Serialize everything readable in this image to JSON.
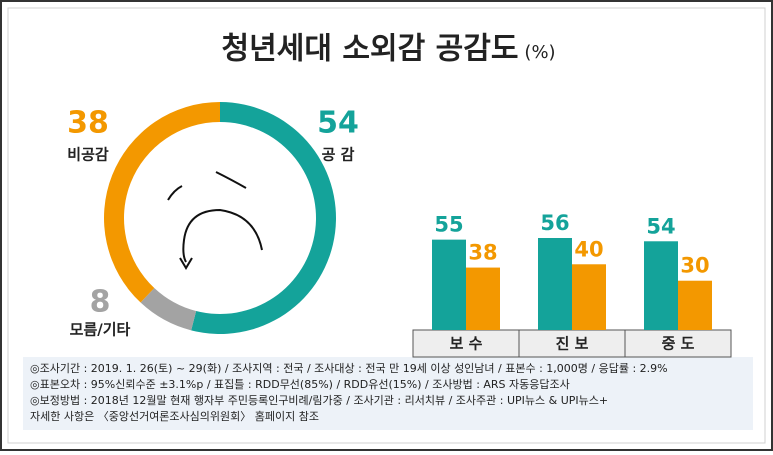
{
  "header": {
    "title": "청년세대 소외감 공감도",
    "unit": "(%)"
  },
  "chart_data": [
    {
      "type": "pie",
      "donut": true,
      "categories": [
        "공 감",
        "모름/기타",
        "비공감"
      ],
      "values": [
        54,
        8,
        38
      ],
      "colors": [
        "#14a39a",
        "#a3a3a3",
        "#f39800"
      ]
    },
    {
      "type": "bar",
      "categories": [
        "보 수",
        "진 보",
        "중 도"
      ],
      "series": [
        {
          "color": "#14a39a",
          "values": [
            55,
            56,
            54
          ]
        },
        {
          "color": "#f39800",
          "values": [
            38,
            40,
            30
          ]
        }
      ]
    }
  ],
  "footnotes": [
    "◎조사기간 : 2019. 1. 26(토) ~ 29(화) / 조사지역 : 전국 / 조사대상 : 전국 만 19세 이상 성인남녀 / 표본수 : 1,000명 / 응답률 : 2.9%",
    "◎표본오차 : 95%신뢰수준 ±3.1%p / 표집틀 : RDD무선(85%) / RDD유선(15%) / 조사방법 : ARS 자동응답조사",
    "◎보정방법 : 2018년 12월말 현재 행자부 주민등록인구비례/림가중 / 조사기관 : 리서치뷰 / 조사주관 : UPI뉴스 & UPI뉴스+",
    "자세한 사항은 〈중앙선거여론조사심의위원회〉 홈페이지 참조"
  ]
}
